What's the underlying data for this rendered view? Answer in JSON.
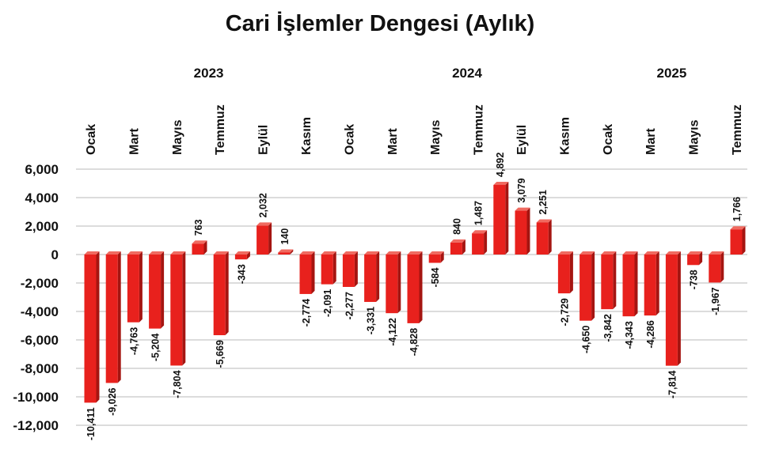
{
  "chart_data": {
    "type": "bar",
    "title": "Cari İşlemler Dengesi (Aylık)",
    "xlabel": "",
    "ylabel": "",
    "ylim": [
      -12000,
      6000
    ],
    "y_ticks": [
      "6,000",
      "4,000",
      "2,000",
      "0",
      "-2,000",
      "-4,000",
      "-6,000",
      "-8,000",
      "-10,000",
      "-12,000"
    ],
    "y_tick_values": [
      6000,
      4000,
      2000,
      0,
      -2000,
      -4000,
      -6000,
      -8000,
      -10000,
      -12000
    ],
    "grid": true,
    "bar_color": "#e8211d",
    "years": [
      {
        "label": "2023",
        "index": 5.5
      },
      {
        "label": "2024",
        "index": 17.5
      },
      {
        "label": "2025",
        "index": 27
      }
    ],
    "month_labels": [
      {
        "index": 0,
        "label": "Ocak"
      },
      {
        "index": 2,
        "label": "Mart"
      },
      {
        "index": 4,
        "label": "Mayıs"
      },
      {
        "index": 6,
        "label": "Temmuz"
      },
      {
        "index": 8,
        "label": "Eylül"
      },
      {
        "index": 10,
        "label": "Kasım"
      },
      {
        "index": 12,
        "label": "Ocak"
      },
      {
        "index": 14,
        "label": "Mart"
      },
      {
        "index": 16,
        "label": "Mayıs"
      },
      {
        "index": 18,
        "label": "Temmuz"
      },
      {
        "index": 20,
        "label": "Eylül"
      },
      {
        "index": 22,
        "label": "Kasım"
      },
      {
        "index": 24,
        "label": "Ocak"
      },
      {
        "index": 26,
        "label": "Mart"
      },
      {
        "index": 28,
        "label": "Mayıs"
      },
      {
        "index": 30,
        "label": "Temmuz"
      }
    ],
    "values": [
      -10411,
      -9026,
      -4763,
      -5204,
      -7804,
      763,
      -5669,
      -343,
      2032,
      140,
      -2774,
      -2091,
      -2277,
      -3331,
      -4122,
      -4828,
      -584,
      840,
      1487,
      4892,
      3079,
      2251,
      -2729,
      -4650,
      -3842,
      -4343,
      -4286,
      -7814,
      -738,
      -1967,
      1766
    ],
    "value_labels": [
      "-10,411",
      "-9,026",
      "-4,763",
      "-5,204",
      "-7,804",
      "763",
      "-5,669",
      "-343",
      "2,032",
      "140",
      "-2,774",
      "-2,091",
      "-2,277",
      "-3,331",
      "-4,122",
      "-4,828",
      "-584",
      "840",
      "1,487",
      "4,892",
      "3,079",
      "2,251",
      "-2,729",
      "-4,650",
      "-3,842",
      "-4,343",
      "-4,286",
      "-7,814",
      "-738",
      "-1,967",
      "1,766"
    ]
  }
}
